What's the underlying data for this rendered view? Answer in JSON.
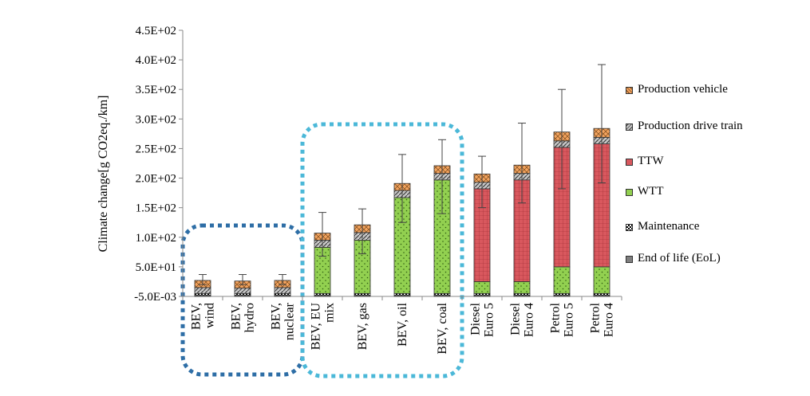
{
  "chart_data": {
    "type": "bar",
    "stacked": true,
    "title": "",
    "xlabel": "",
    "ylabel": "Climate change[g CO2eq./km]",
    "ylim": [
      -0.005,
      450
    ],
    "yticks": [
      "-5.0E-03",
      "5.0E+01",
      "1.0E+02",
      "1.5E+02",
      "2.0E+02",
      "2.5E+02",
      "3.0E+02",
      "3.5E+02",
      "4.0E+02",
      "4.5E+02"
    ],
    "ytick_values": [
      -0.005,
      50,
      100,
      150,
      200,
      250,
      300,
      350,
      400,
      450
    ],
    "grid": false,
    "legend_position": "right",
    "categories": [
      [
        "BEV,",
        "wind"
      ],
      [
        "BEV,",
        "hydro"
      ],
      [
        "BEV,",
        "nuclear"
      ],
      [
        "BEV, EU",
        "mix"
      ],
      [
        "BEV,  gas"
      ],
      [
        "BEV, oil"
      ],
      [
        "BEV, coal"
      ],
      [
        "Diesel",
        "Euro 5"
      ],
      [
        "Diesel",
        "Euro 4"
      ],
      [
        "Petrol",
        "Euro 5"
      ],
      [
        "Petrol",
        "Euro 4"
      ]
    ],
    "series": [
      {
        "name": "End of life (EoL)",
        "color": "#7f7f7f",
        "values": [
          2,
          2,
          2,
          2,
          2,
          2,
          2,
          2,
          2,
          2,
          2
        ]
      },
      {
        "name": "Maintenance",
        "color": "#ffffff",
        "values": [
          3,
          3,
          3,
          3,
          3,
          3,
          3,
          3,
          3,
          3,
          3
        ]
      },
      {
        "name": "WTT",
        "color": "#92d050",
        "values": [
          0,
          0,
          0,
          78,
          90,
          162,
          192,
          20,
          20,
          45,
          45
        ]
      },
      {
        "name": "TTW",
        "color": "#d9585e",
        "values": [
          0,
          0,
          0,
          0,
          0,
          0,
          0,
          157,
          172,
          202,
          208
        ]
      },
      {
        "name": "Production drive train",
        "color": "#a5a5a5",
        "values": [
          10,
          9,
          10,
          12,
          13,
          12,
          11,
          11,
          11,
          11,
          11
        ]
      },
      {
        "name": "Production vehicle",
        "color": "#f4a460",
        "values": [
          12,
          12,
          12,
          12,
          13,
          12,
          13,
          14,
          14,
          15,
          15
        ]
      }
    ],
    "error_bars": {
      "upper": [
        37,
        37,
        37,
        142,
        148,
        240,
        265,
        237,
        293,
        350,
        392
      ],
      "lower": [
        20,
        20,
        20,
        68,
        72,
        125,
        140,
        150,
        158,
        182,
        192
      ]
    },
    "annotations": [
      {
        "type": "dotted-rounded-box",
        "color": "#2e6ea6",
        "encloses": [
          "BEV, wind",
          "BEV, hydro",
          "BEV, nuclear"
        ]
      },
      {
        "type": "dotted-rounded-box",
        "color": "#4bb8d8",
        "encloses": [
          "BEV, EU mix",
          "BEV, gas",
          "BEV, oil",
          "BEV, coal"
        ]
      }
    ]
  }
}
